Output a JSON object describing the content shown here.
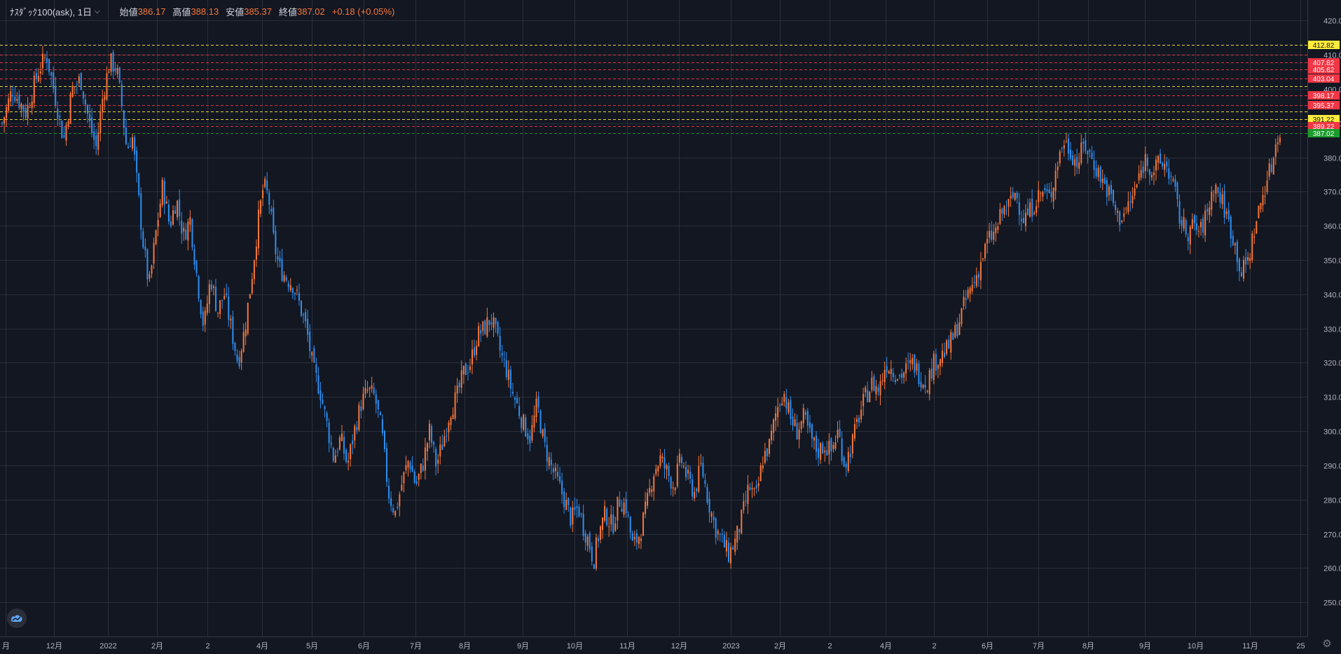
{
  "legend": {
    "symbol": "ﾅｽﾀﾞｯｸ100(ask), 1日",
    "open_label": "始値",
    "open": "386.17",
    "high_label": "高値",
    "high": "388.13",
    "low_label": "安値",
    "low": "385.37",
    "close_label": "終値",
    "close": "387.02",
    "change": "+0.18 (+0.05%)"
  },
  "colors": {
    "background": "#131722",
    "up": "#f7773a",
    "down": "#2f8ff0",
    "grid": "#2a2e39",
    "axis_text": "#b2b5be",
    "level_yellow": "#ffeb3b",
    "level_red": "#f23645",
    "level_green": "#1b9c2c"
  },
  "icons": {
    "logo": "tradingview-cloud-icon",
    "settings": "gear-icon"
  },
  "chart_data": {
    "type": "candlestick",
    "ylim": [
      240,
      426
    ],
    "y_ticks": [
      250,
      260,
      270,
      280,
      290,
      300,
      310,
      320,
      330,
      340,
      350,
      360,
      370,
      380,
      390,
      400,
      410,
      420
    ],
    "x_ticks": [
      "月",
      "12月",
      "2022",
      "2月",
      "2",
      "4月",
      "5月",
      "6月",
      "7月",
      "8月",
      "9月",
      "10月",
      "11月",
      "12月",
      "2023",
      "2月",
      "2",
      "4月",
      "2",
      "6月",
      "7月",
      "8月",
      "9月",
      "10月",
      "11月",
      "25"
    ],
    "price_levels": [
      {
        "value": 412.82,
        "label": "412.82",
        "color": "yellow"
      },
      {
        "value": 410.1,
        "label": "",
        "color": "red"
      },
      {
        "value": 407.82,
        "label": "407.82",
        "color": "red"
      },
      {
        "value": 405.62,
        "label": "405.62",
        "color": "red"
      },
      {
        "value": 403.04,
        "label": "403.04",
        "color": "red"
      },
      {
        "value": 400.8,
        "label": "",
        "color": "yellow"
      },
      {
        "value": 398.17,
        "label": "398.17",
        "color": "red"
      },
      {
        "value": 395.37,
        "label": "395.37",
        "color": "red"
      },
      {
        "value": 393.4,
        "label": "",
        "color": "yellow"
      },
      {
        "value": 391.22,
        "label": "391.22",
        "color": "yellow"
      },
      {
        "value": 389.22,
        "label": "389.22",
        "color": "red"
      },
      {
        "value": 387.02,
        "label": "387.02",
        "color": "green"
      }
    ],
    "close_path": [
      [
        0,
        390
      ],
      [
        12,
        400
      ],
      [
        28,
        393
      ],
      [
        42,
        405
      ],
      [
        52,
        410
      ],
      [
        62,
        398
      ],
      [
        72,
        385
      ],
      [
        82,
        400
      ],
      [
        92,
        403
      ],
      [
        102,
        390
      ],
      [
        110,
        383
      ],
      [
        118,
        398
      ],
      [
        126,
        408
      ],
      [
        134,
        406
      ],
      [
        140,
        395
      ],
      [
        146,
        382
      ],
      [
        152,
        387
      ],
      [
        158,
        372
      ],
      [
        165,
        355
      ],
      [
        172,
        342
      ],
      [
        180,
        358
      ],
      [
        188,
        372
      ],
      [
        196,
        360
      ],
      [
        204,
        368
      ],
      [
        212,
        357
      ],
      [
        220,
        362
      ],
      [
        228,
        345
      ],
      [
        236,
        330
      ],
      [
        244,
        345
      ],
      [
        252,
        335
      ],
      [
        260,
        340
      ],
      [
        268,
        330
      ],
      [
        276,
        320
      ],
      [
        284,
        330
      ],
      [
        292,
        345
      ],
      [
        300,
        362
      ],
      [
        306,
        372
      ],
      [
        312,
        368
      ],
      [
        318,
        355
      ],
      [
        324,
        348
      ],
      [
        332,
        345
      ],
      [
        340,
        343
      ],
      [
        348,
        337
      ],
      [
        356,
        330
      ],
      [
        364,
        318
      ],
      [
        372,
        312
      ],
      [
        380,
        302
      ],
      [
        388,
        292
      ],
      [
        396,
        298
      ],
      [
        404,
        290
      ],
      [
        412,
        300
      ],
      [
        420,
        308
      ],
      [
        428,
        312
      ],
      [
        436,
        310
      ],
      [
        444,
        300
      ],
      [
        452,
        282
      ],
      [
        460,
        276
      ],
      [
        468,
        285
      ],
      [
        476,
        292
      ],
      [
        484,
        284
      ],
      [
        492,
        290
      ],
      [
        500,
        300
      ],
      [
        508,
        290
      ],
      [
        516,
        297
      ],
      [
        524,
        306
      ],
      [
        532,
        310
      ],
      [
        540,
        317
      ],
      [
        548,
        320
      ],
      [
        556,
        328
      ],
      [
        564,
        330
      ],
      [
        572,
        333
      ],
      [
        578,
        328
      ],
      [
        584,
        322
      ],
      [
        590,
        318
      ],
      [
        596,
        312
      ],
      [
        602,
        308
      ],
      [
        610,
        302
      ],
      [
        618,
        298
      ],
      [
        626,
        308
      ],
      [
        634,
        296
      ],
      [
        642,
        290
      ],
      [
        650,
        285
      ],
      [
        658,
        280
      ],
      [
        666,
        274
      ],
      [
        674,
        278
      ],
      [
        680,
        272
      ],
      [
        686,
        268
      ],
      [
        692,
        262
      ],
      [
        698,
        270
      ],
      [
        706,
        276
      ],
      [
        714,
        272
      ],
      [
        722,
        280
      ],
      [
        730,
        278
      ],
      [
        738,
        266
      ],
      [
        746,
        270
      ],
      [
        754,
        278
      ],
      [
        762,
        288
      ],
      [
        770,
        292
      ],
      [
        778,
        288
      ],
      [
        786,
        284
      ],
      [
        794,
        292
      ],
      [
        802,
        286
      ],
      [
        810,
        282
      ],
      [
        818,
        290
      ],
      [
        826,
        280
      ],
      [
        834,
        272
      ],
      [
        842,
        268
      ],
      [
        850,
        264
      ],
      [
        858,
        268
      ],
      [
        866,
        275
      ],
      [
        874,
        284
      ],
      [
        882,
        280
      ],
      [
        890,
        292
      ],
      [
        898,
        296
      ],
      [
        906,
        306
      ],
      [
        914,
        312
      ],
      [
        922,
        304
      ],
      [
        930,
        300
      ],
      [
        938,
        304
      ],
      [
        946,
        298
      ],
      [
        954,
        294
      ],
      [
        962,
        296
      ],
      [
        970,
        294
      ],
      [
        978,
        300
      ],
      [
        986,
        290
      ],
      [
        994,
        296
      ],
      [
        1002,
        304
      ],
      [
        1010,
        310
      ],
      [
        1018,
        314
      ],
      [
        1026,
        312
      ],
      [
        1034,
        320
      ],
      [
        1042,
        318
      ],
      [
        1050,
        316
      ],
      [
        1058,
        318
      ],
      [
        1066,
        320
      ],
      [
        1074,
        316
      ],
      [
        1082,
        314
      ],
      [
        1090,
        320
      ],
      [
        1098,
        322
      ],
      [
        1106,
        324
      ],
      [
        1114,
        328
      ],
      [
        1122,
        334
      ],
      [
        1130,
        340
      ],
      [
        1138,
        344
      ],
      [
        1146,
        350
      ],
      [
        1154,
        356
      ],
      [
        1162,
        358
      ],
      [
        1170,
        364
      ],
      [
        1178,
        366
      ],
      [
        1186,
        370
      ],
      [
        1194,
        362
      ],
      [
        1202,
        364
      ],
      [
        1210,
        368
      ],
      [
        1218,
        370
      ],
      [
        1226,
        368
      ],
      [
        1234,
        378
      ],
      [
        1242,
        385
      ],
      [
        1250,
        382
      ],
      [
        1258,
        378
      ],
      [
        1266,
        384
      ],
      [
        1274,
        380
      ],
      [
        1282,
        376
      ],
      [
        1290,
        372
      ],
      [
        1298,
        368
      ],
      [
        1306,
        362
      ],
      [
        1314,
        364
      ],
      [
        1322,
        368
      ],
      [
        1330,
        374
      ],
      [
        1338,
        380
      ],
      [
        1346,
        376
      ],
      [
        1354,
        378
      ],
      [
        1362,
        378
      ],
      [
        1370,
        372
      ],
      [
        1378,
        362
      ],
      [
        1386,
        358
      ],
      [
        1394,
        360
      ],
      [
        1402,
        358
      ],
      [
        1410,
        364
      ],
      [
        1418,
        372
      ],
      [
        1426,
        368
      ],
      [
        1434,
        362
      ],
      [
        1442,
        355
      ],
      [
        1450,
        346
      ],
      [
        1458,
        350
      ],
      [
        1466,
        360
      ],
      [
        1474,
        368
      ],
      [
        1480,
        374
      ],
      [
        1486,
        378
      ],
      [
        1492,
        387
      ],
      [
        1496,
        387
      ]
    ]
  }
}
